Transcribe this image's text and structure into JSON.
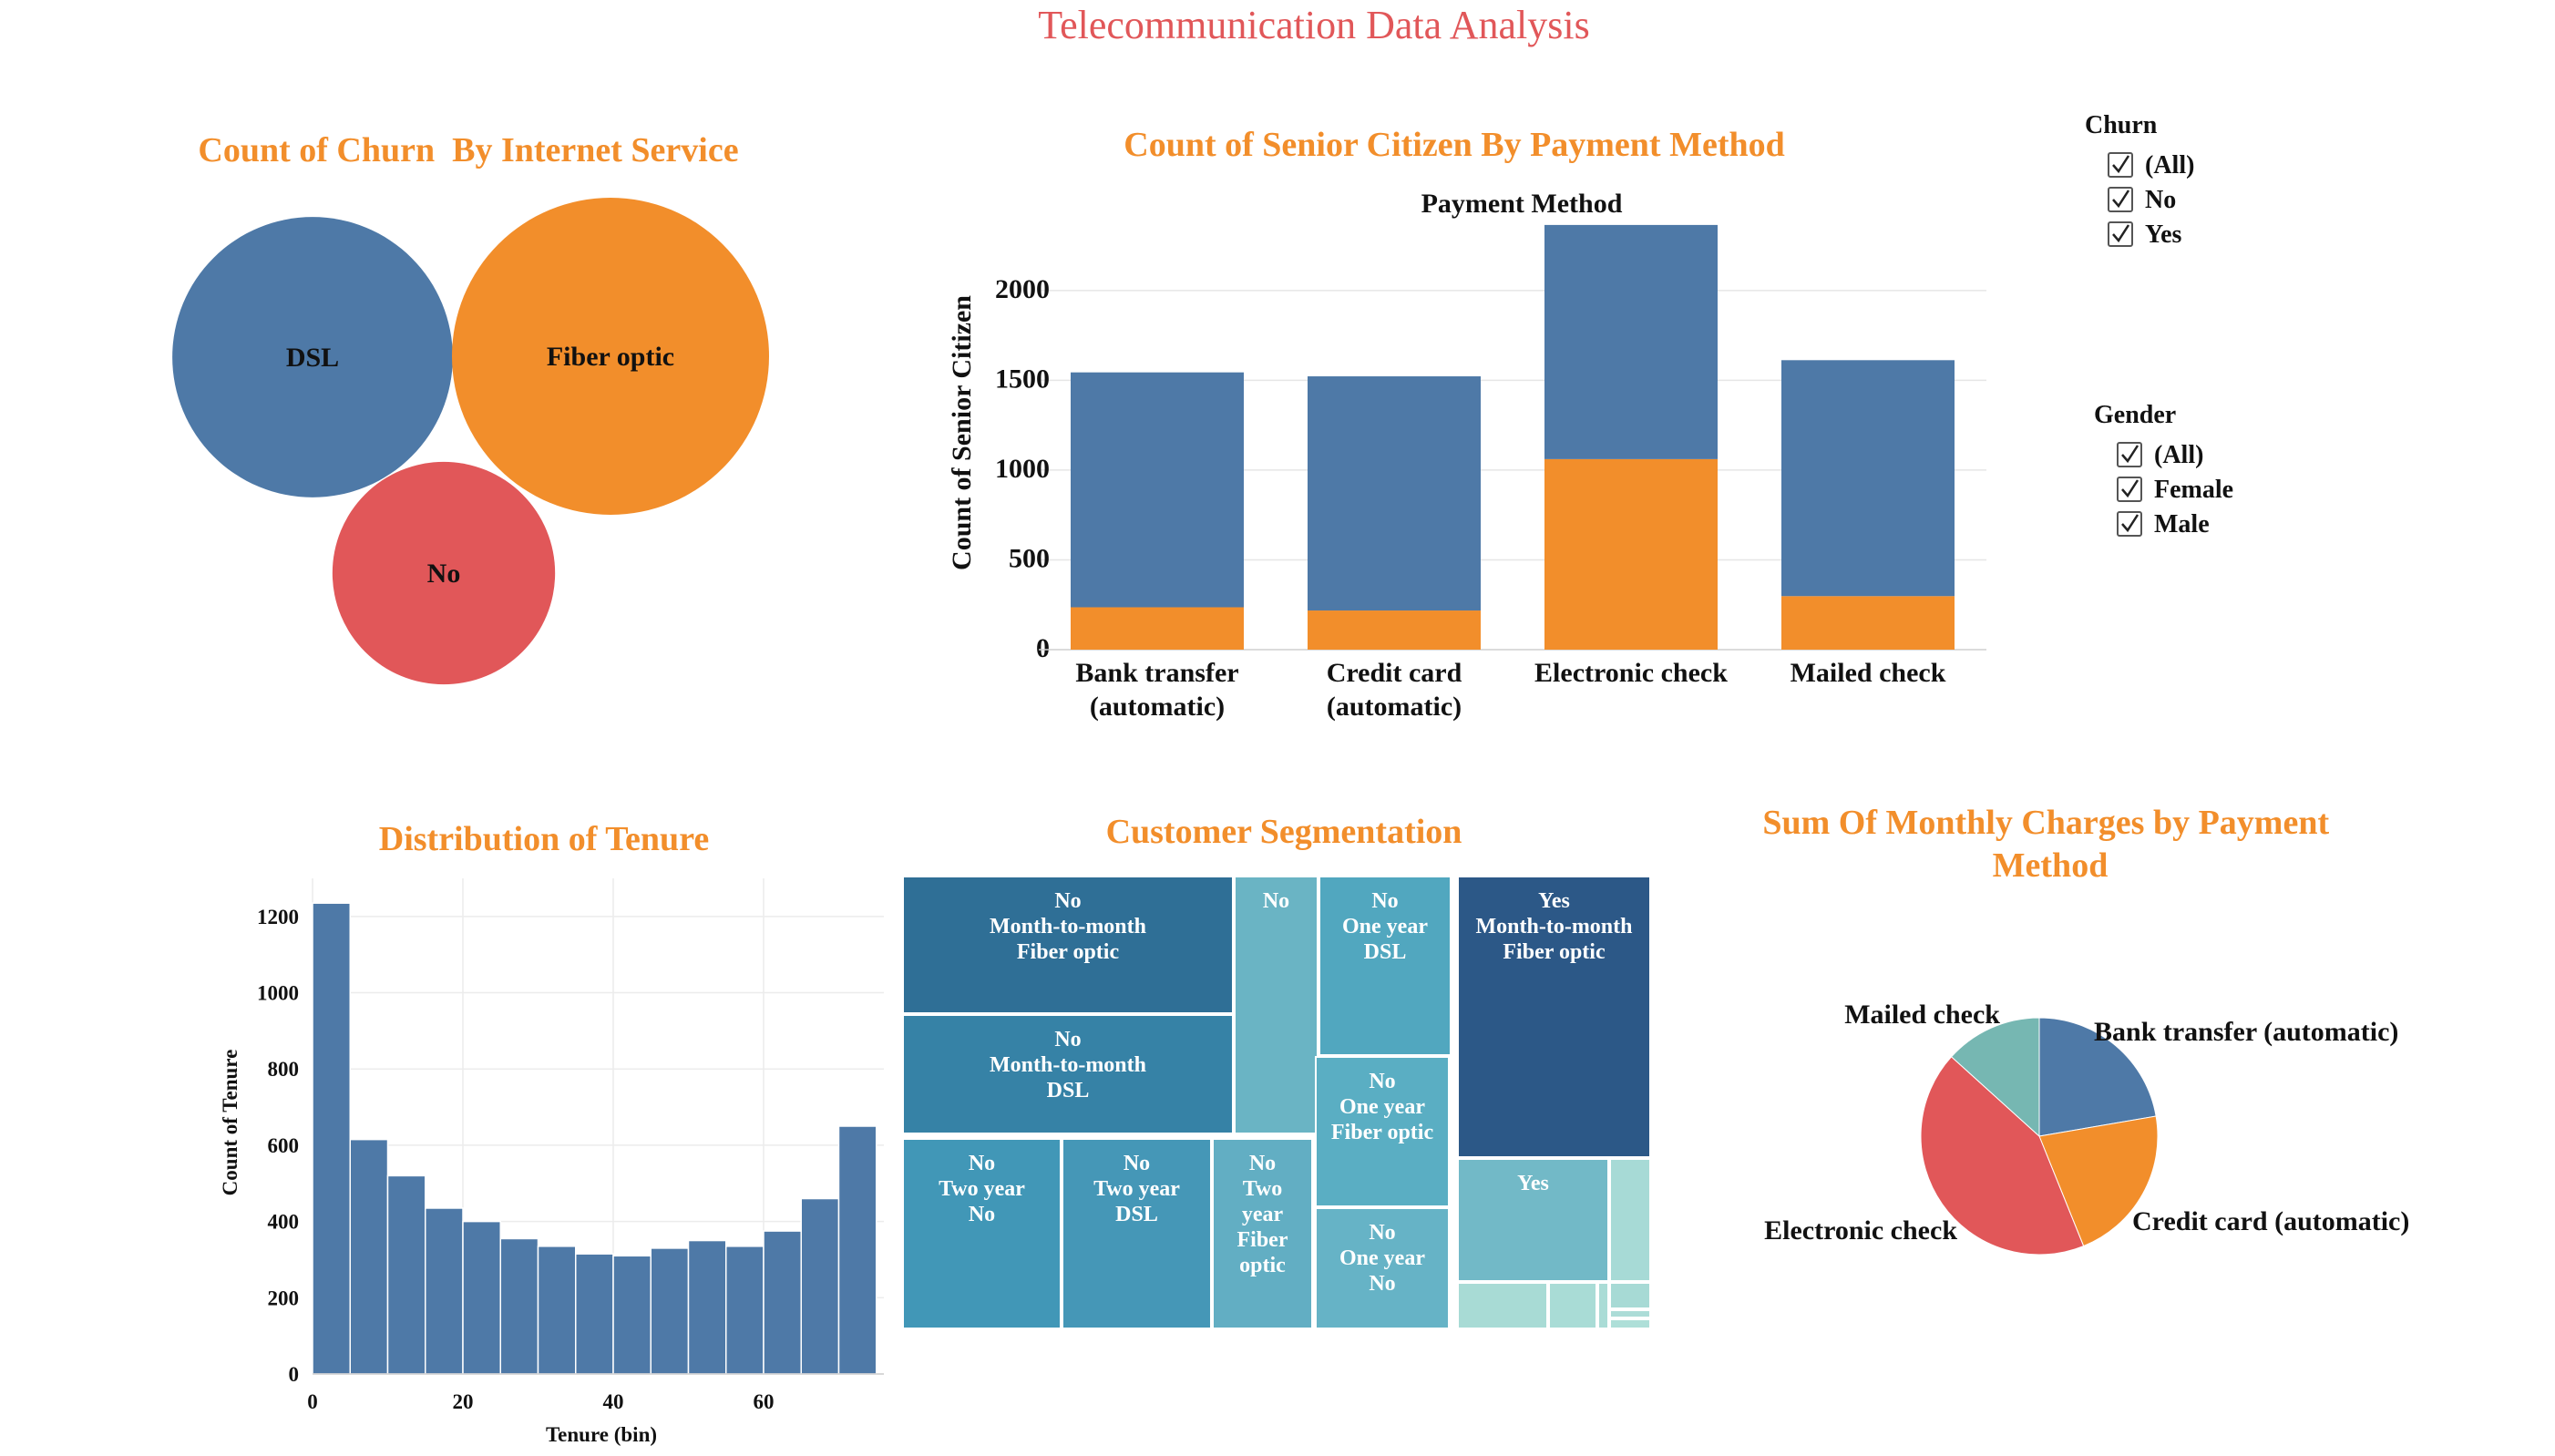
{
  "dashboard": {
    "title": "Telecommunication Data Analysis",
    "colors": {
      "title": "#e15759",
      "chart_title": "#f28e2b",
      "blue": "#4e79a7",
      "orange": "#f28e2b",
      "red": "#e15759",
      "teal": "#76b7b2"
    }
  },
  "filters": {
    "churn": {
      "title": "Churn",
      "options": [
        "(All)",
        "No",
        "Yes"
      ],
      "checked": [
        true,
        true,
        true
      ]
    },
    "gender": {
      "title": "Gender",
      "options": [
        "(All)",
        "Female",
        "Male"
      ],
      "checked": [
        true,
        true,
        true
      ]
    }
  },
  "chart_data": [
    {
      "id": "bubbles",
      "type": "bubble",
      "title": "Count of Churn  By Internet Service",
      "categories": [
        "DSL",
        "Fiber optic",
        "No"
      ],
      "values": [
        2421,
        3096,
        1526
      ],
      "colors": [
        "#4e79a7",
        "#f28e2b",
        "#e15759"
      ]
    },
    {
      "id": "bars",
      "type": "bar",
      "stacked": true,
      "title": "Count of Senior Citizen By Payment Method",
      "header": "Payment Method",
      "ylabel": "Count of Senior Citizen",
      "categories": [
        "Bank transfer (automatic)",
        "Credit card (automatic)",
        "Electronic check",
        "Mailed check"
      ],
      "yticks": [
        0,
        500,
        1000,
        1500,
        2000
      ],
      "ylim": [
        0,
        2400
      ],
      "series": [
        {
          "values": [
            236,
            218,
            1061,
            298
          ],
          "color": "#f28e2b"
        },
        {
          "values": [
            1308,
            1304,
            1304,
            1314
          ],
          "color": "#4e79a7"
        }
      ],
      "grid": true
    },
    {
      "id": "hist",
      "type": "bar",
      "title": "Distribution of Tenure",
      "xlabel": "Tenure (bin)",
      "ylabel": "Count of Tenure",
      "bin_width": 5,
      "x": [
        0,
        5,
        10,
        15,
        20,
        25,
        30,
        35,
        40,
        45,
        50,
        55,
        60,
        65,
        70
      ],
      "values": [
        1235,
        615,
        520,
        435,
        400,
        355,
        335,
        315,
        310,
        330,
        350,
        335,
        375,
        460,
        650
      ],
      "xticks": [
        0,
        20,
        40,
        60
      ],
      "yticks": [
        0,
        200,
        400,
        600,
        800,
        1000,
        1200
      ],
      "xlim": [
        0,
        76
      ],
      "ylim": [
        0,
        1300
      ],
      "color": "#4e79a7",
      "grid": true
    },
    {
      "id": "treemap",
      "type": "treemap",
      "title": "Customer Segmentation",
      "cells": [
        {
          "lines": [
            "No",
            "Month-to-month",
            "Fiber optic"
          ],
          "color": "#2f6f96"
        },
        {
          "lines": [
            "No",
            "Month-to-month",
            "DSL"
          ],
          "color": "#3682a6"
        },
        {
          "lines": [
            "No"
          ],
          "color": "#6ab4c4"
        },
        {
          "lines": [
            "No",
            "One year",
            "DSL"
          ],
          "color": "#51a7bf"
        },
        {
          "lines": [
            "Yes",
            "Month-to-month",
            "Fiber optic"
          ],
          "color": "#2c5887"
        },
        {
          "lines": [
            "No",
            "Two year",
            "No"
          ],
          "color": "#4197b7"
        },
        {
          "lines": [
            "No",
            "Two year",
            "DSL"
          ],
          "color": "#4597b7"
        },
        {
          "lines": [
            "No",
            "Two",
            "year",
            "Fiber",
            "optic"
          ],
          "color": "#62aec3"
        },
        {
          "lines": [
            "No",
            "One year",
            "Fiber optic"
          ],
          "color": "#5aaec3"
        },
        {
          "lines": [
            "No",
            "One year",
            "No"
          ],
          "color": "#66b3c6"
        },
        {
          "lines": [
            "Yes"
          ],
          "color": "#72b9c7"
        },
        {
          "lines": [],
          "color": "#a7dad6"
        },
        {
          "lines": [],
          "color": "#a8dbd5"
        },
        {
          "lines": [],
          "color": "#a9dcd6"
        },
        {
          "lines": [],
          "color": "#aadcd6"
        },
        {
          "lines": [],
          "color": "#a7dad5"
        },
        {
          "lines": [],
          "color": "#acdcd7"
        },
        {
          "lines": [],
          "color": "#aedfd8"
        }
      ]
    },
    {
      "id": "pie",
      "type": "pie",
      "title": "Sum Of Monthly Charges by Payment Method",
      "categories": [
        "Bank transfer (automatic)",
        "Credit card (automatic)",
        "Electronic check",
        "Mailed check"
      ],
      "values": [
        22.3,
        21.6,
        42.8,
        13.3
      ],
      "colors": [
        "#4e79a7",
        "#f28e2b",
        "#e15759",
        "#76b7b2"
      ]
    }
  ]
}
